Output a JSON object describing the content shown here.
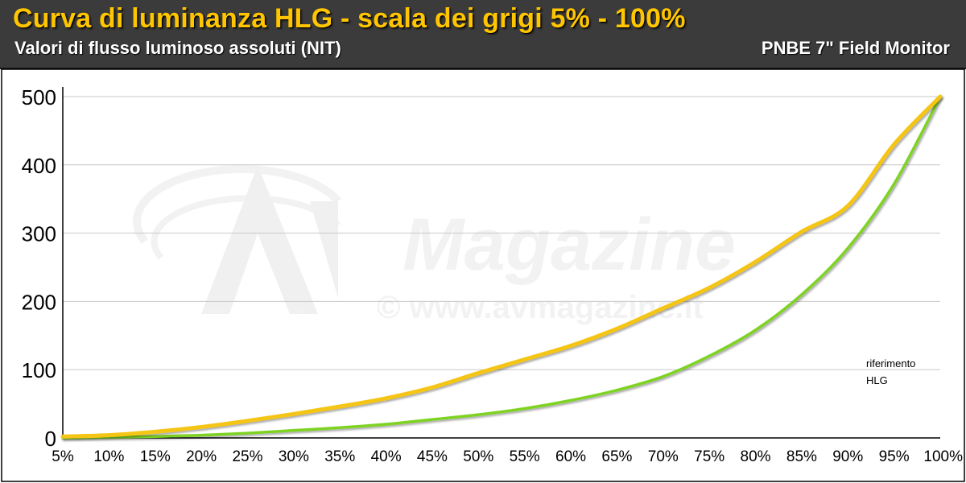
{
  "header": {
    "title": "Curva di luminanza HLG - scala dei grigi 5% - 100%",
    "subtitle": "Valori di flusso luminoso assoluti (NIT)",
    "source": "PNBE 7\" Field Monitor"
  },
  "watermark": {
    "logo_text": "Magazine",
    "url": "© www.avmagazine.it"
  },
  "colors": {
    "header_bg": "#3b3b3b",
    "title": "#ffc600",
    "riferimento": "#7ed321",
    "hlg": "#f5c518",
    "grid": "#c8c8c8"
  },
  "chart_data": {
    "type": "line",
    "categories": [
      "5%",
      "10%",
      "15%",
      "20%",
      "25%",
      "30%",
      "35%",
      "40%",
      "45%",
      "50%",
      "55%",
      "60%",
      "65%",
      "70%",
      "75%",
      "80%",
      "85%",
      "90%",
      "95%",
      "100%"
    ],
    "ylim": [
      0,
      500
    ],
    "yticks": [
      "0",
      "100",
      "200",
      "300",
      "400",
      "500"
    ],
    "grid": true,
    "legend_position": "right",
    "series": [
      {
        "name": "riferimento",
        "color": "#7ed321",
        "values": [
          0,
          1,
          2,
          4,
          7,
          11,
          15,
          20,
          27,
          34,
          43,
          55,
          70,
          90,
          120,
          158,
          210,
          278,
          372,
          500
        ]
      },
      {
        "name": "HLG",
        "color": "#f5c518",
        "values": [
          2,
          4,
          9,
          16,
          25,
          35,
          46,
          58,
          74,
          95,
          115,
          135,
          160,
          190,
          220,
          258,
          302,
          340,
          430,
          500
        ]
      }
    ]
  }
}
